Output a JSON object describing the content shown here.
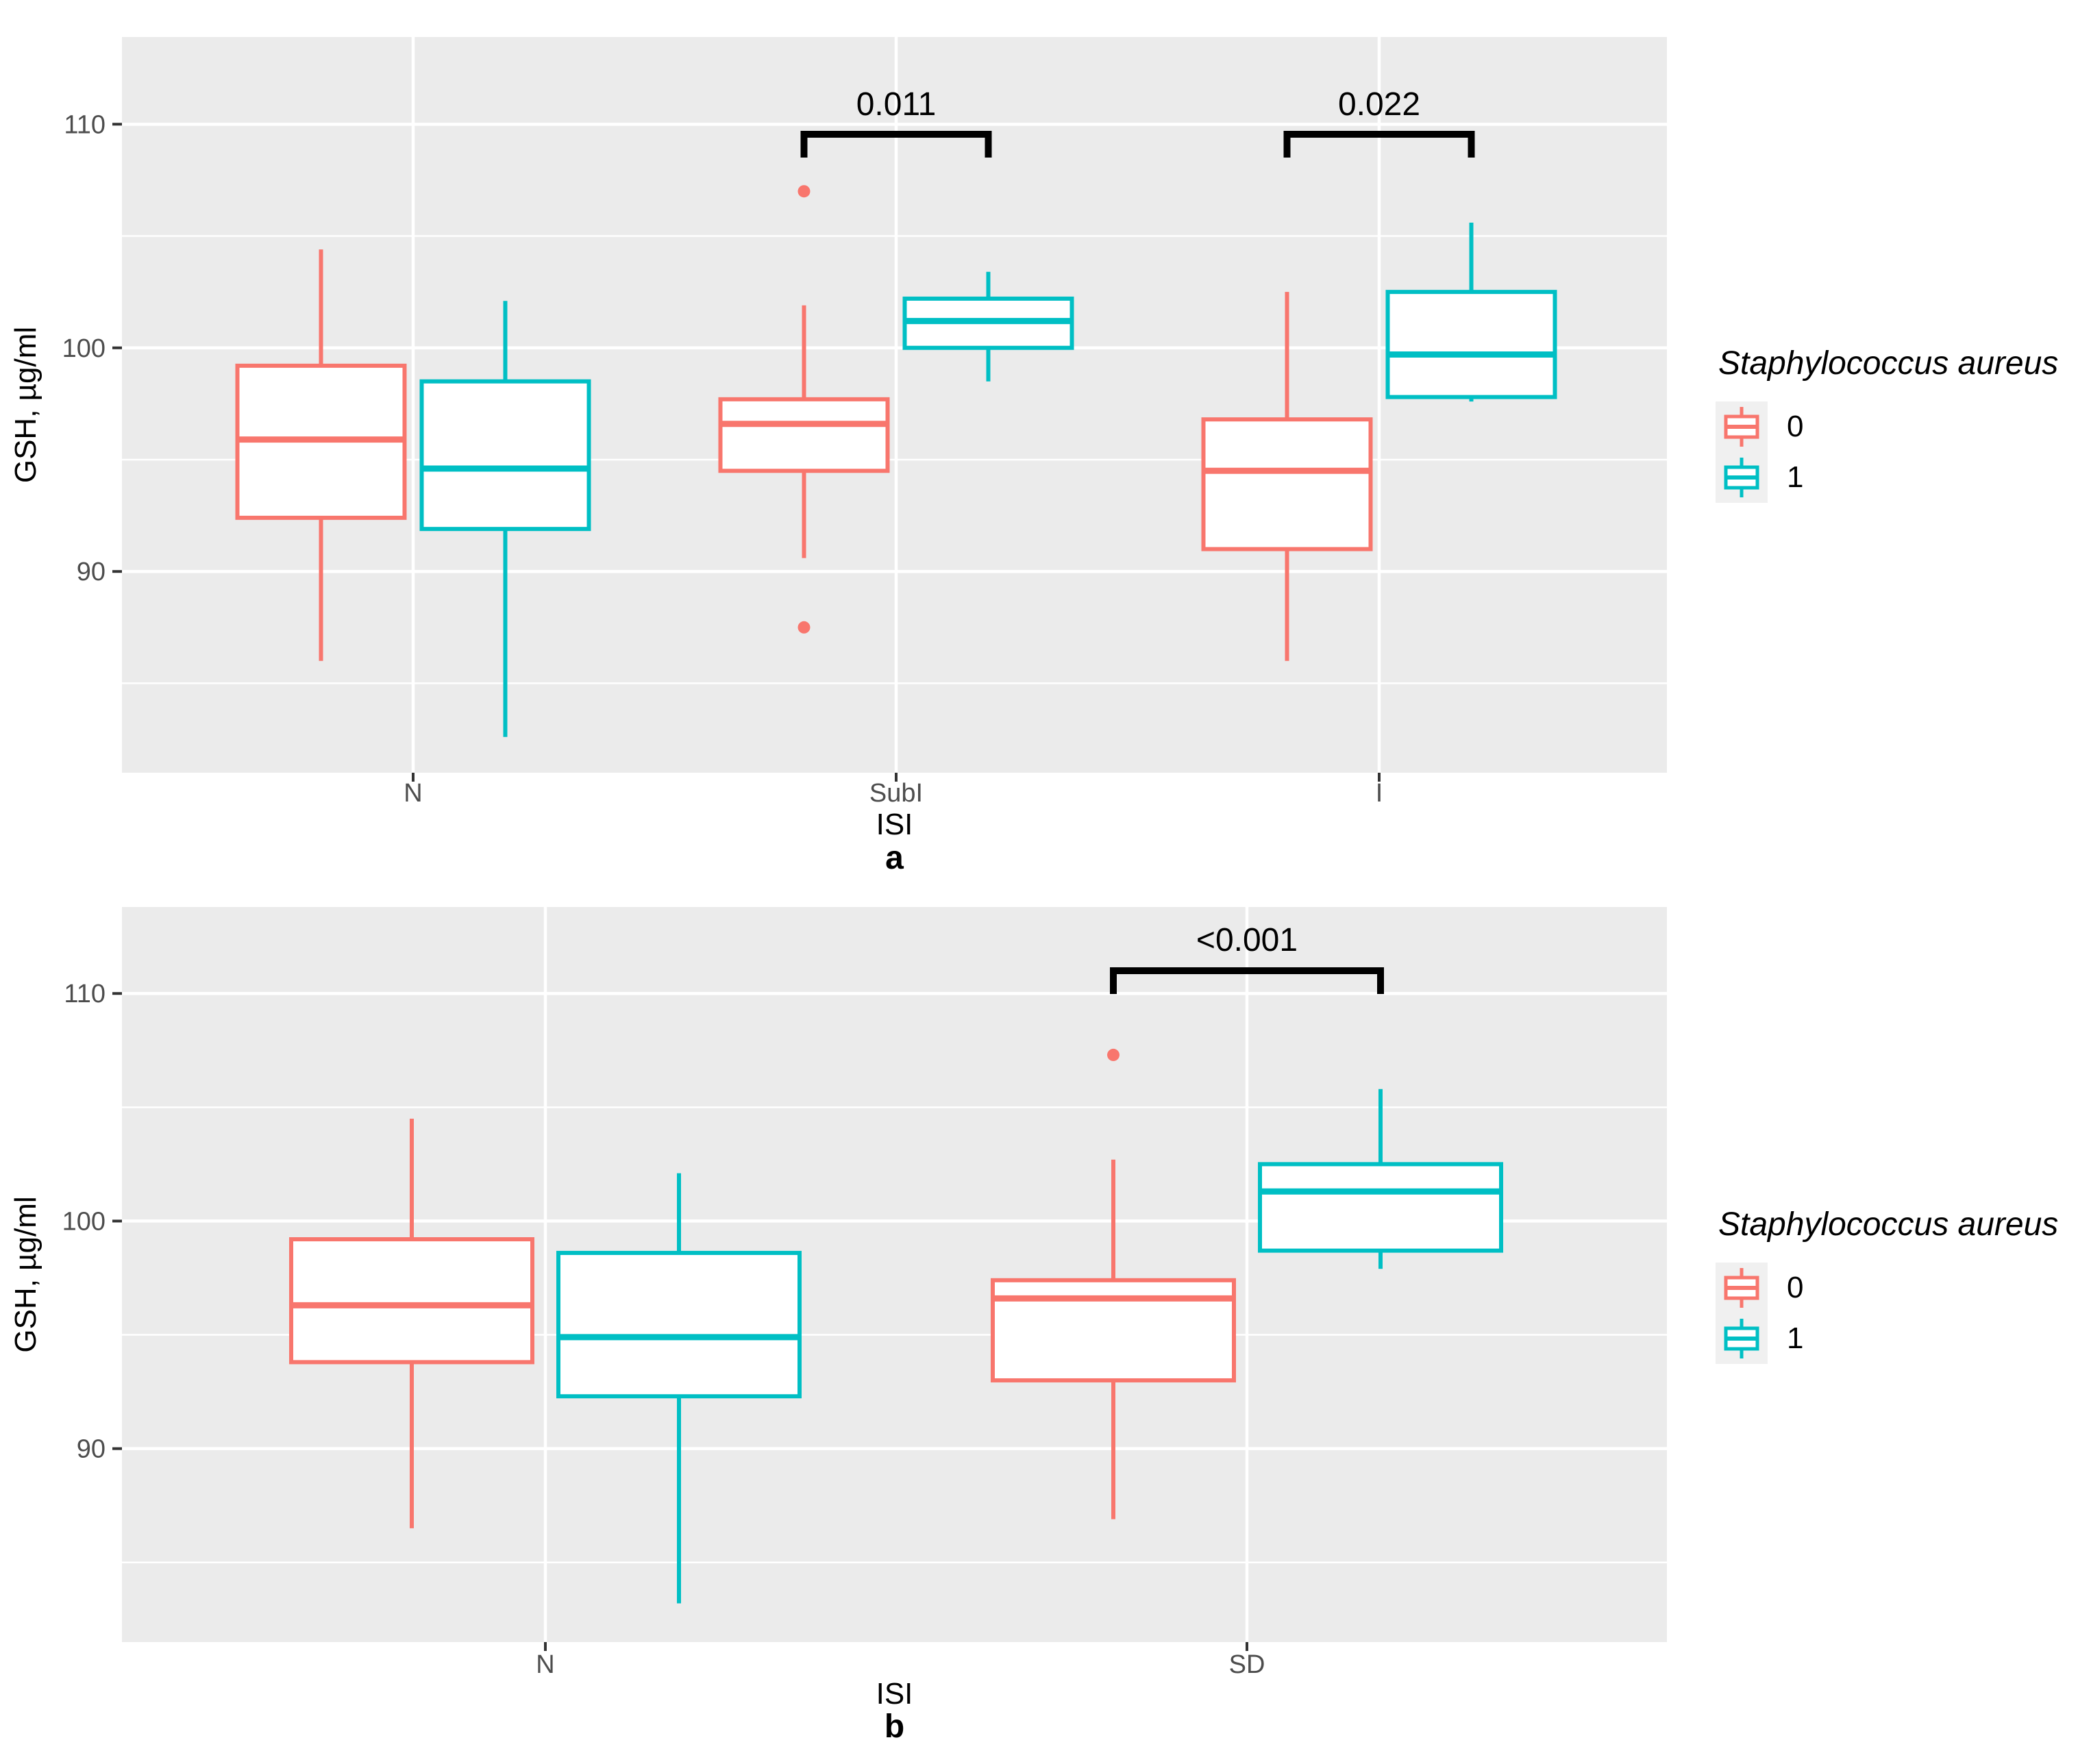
{
  "colors": {
    "series0": "#F8766D",
    "series1": "#00BFC4",
    "panel_bg": "#EBEBEB",
    "grid": "#FFFFFF",
    "tick_text": "#4D4D4D",
    "axis_text": "#000000",
    "tick_mark": "#333333",
    "legend_key_bg": "#F0F0F0",
    "bracket": "#000000"
  },
  "legend": {
    "title": "Staphylococcus aureus",
    "items": [
      {
        "label": "0"
      },
      {
        "label": "1"
      }
    ]
  },
  "chart_data": [
    {
      "type": "boxplot",
      "panel_label": "a",
      "xlabel": "ISI",
      "ylabel": "GSH, µg/ml",
      "categories": [
        "N",
        "SubI",
        "I"
      ],
      "yticks": [
        90,
        100,
        110
      ],
      "minor_gridlines": [
        85,
        95,
        105
      ],
      "ylim": [
        81.0,
        113.9
      ],
      "legend_position": "right",
      "grid": true,
      "series": [
        {
          "name": "0",
          "boxes": [
            {
              "category": "N",
              "whisker_low": 86.0,
              "q1": 92.4,
              "median": 95.9,
              "q3": 99.2,
              "whisker_high": 104.4,
              "outliers": []
            },
            {
              "category": "SubI",
              "whisker_low": 90.6,
              "q1": 94.5,
              "median": 96.6,
              "q3": 97.7,
              "whisker_high": 101.9,
              "outliers": [
                107.0,
                87.5
              ]
            },
            {
              "category": "I",
              "whisker_low": 86.0,
              "q1": 91.0,
              "median": 94.5,
              "q3": 96.8,
              "whisker_high": 102.5,
              "outliers": []
            }
          ]
        },
        {
          "name": "1",
          "boxes": [
            {
              "category": "N",
              "whisker_low": 82.6,
              "q1": 91.9,
              "median": 94.6,
              "q3": 98.5,
              "whisker_high": 102.1,
              "outliers": []
            },
            {
              "category": "SubI",
              "whisker_low": 98.5,
              "q1": 100.0,
              "median": 101.2,
              "q3": 102.2,
              "whisker_high": 103.4,
              "outliers": []
            },
            {
              "category": "I",
              "whisker_low": 97.6,
              "q1": 97.8,
              "median": 99.7,
              "q3": 102.5,
              "whisker_high": 105.6,
              "outliers": []
            }
          ]
        }
      ],
      "significance": [
        {
          "label": "0.011",
          "category": "SubI",
          "from_series": "0",
          "to_series": "1"
        },
        {
          "label": "0.022",
          "category": "I",
          "from_series": "0",
          "to_series": "1"
        }
      ]
    },
    {
      "type": "boxplot",
      "panel_label": "b",
      "xlabel": "ISI",
      "ylabel": "GSH, µg/ml",
      "categories": [
        "N",
        "SD"
      ],
      "yticks": [
        90,
        100,
        110
      ],
      "minor_gridlines": [
        85,
        95,
        105
      ],
      "ylim": [
        81.5,
        113.8
      ],
      "legend_position": "right",
      "grid": true,
      "series": [
        {
          "name": "0",
          "boxes": [
            {
              "category": "N",
              "whisker_low": 86.5,
              "q1": 93.8,
              "median": 96.3,
              "q3": 99.2,
              "whisker_high": 104.5,
              "outliers": []
            },
            {
              "category": "SD",
              "whisker_low": 86.9,
              "q1": 93.0,
              "median": 96.6,
              "q3": 97.4,
              "whisker_high": 102.7,
              "outliers": [
                107.3
              ]
            }
          ]
        },
        {
          "name": "1",
          "boxes": [
            {
              "category": "N",
              "whisker_low": 83.2,
              "q1": 92.3,
              "median": 94.9,
              "q3": 98.6,
              "whisker_high": 102.1,
              "outliers": []
            },
            {
              "category": "SD",
              "whisker_low": 97.9,
              "q1": 98.7,
              "median": 101.3,
              "q3": 102.5,
              "whisker_high": 105.8,
              "outliers": []
            }
          ]
        }
      ],
      "significance": [
        {
          "label": "<0.001",
          "category": "SD",
          "from_series": "0",
          "to_series": "1"
        }
      ]
    }
  ]
}
